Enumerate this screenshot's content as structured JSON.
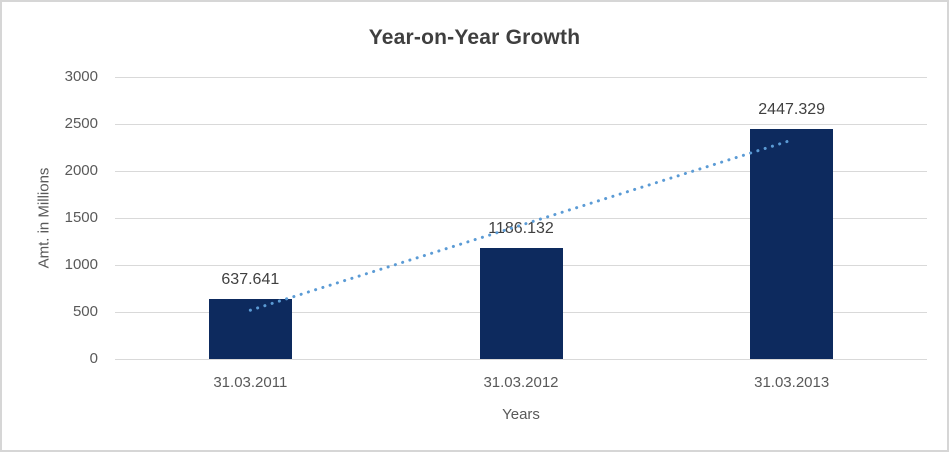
{
  "chart_data": {
    "type": "bar",
    "title": "Year-on-Year Growth",
    "categories": [
      "31.03.2011",
      "31.03.2012",
      "31.03.2013"
    ],
    "values": [
      637.641,
      1186.132,
      2447.329
    ],
    "data_labels": [
      "637.641",
      "1186.132",
      "2447.329"
    ],
    "xlabel": "Years",
    "ylabel": "Amt. in Millions",
    "ylim": [
      0,
      3000
    ],
    "yticks": [
      0,
      500,
      1000,
      1500,
      2000,
      2500,
      3000
    ],
    "grid": true,
    "legend_position": "none",
    "bar_color": "#0d2a5e",
    "trendline": {
      "type": "linear",
      "style": "dotted",
      "color": "#5b9bd5"
    },
    "colors": {
      "title_text": "#3f3f3f",
      "axis_text": "#595959",
      "data_label_text": "#404040",
      "gridline": "#d9d9d9",
      "frame_border": "#d6d6d6",
      "background": "#ffffff"
    }
  }
}
